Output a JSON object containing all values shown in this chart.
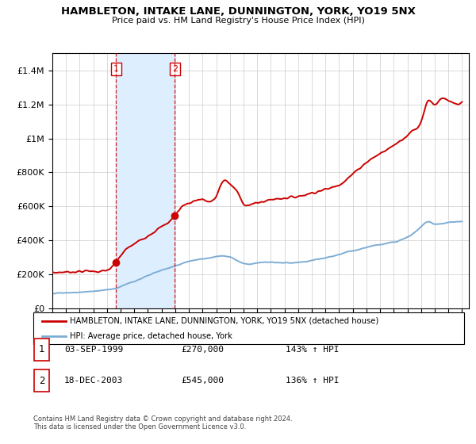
{
  "title": "HAMBLETON, INTAKE LANE, DUNNINGTON, YORK, YO19 5NX",
  "subtitle": "Price paid vs. HM Land Registry's House Price Index (HPI)",
  "legend_line1": "HAMBLETON, INTAKE LANE, DUNNINGTON, YORK, YO19 5NX (detached house)",
  "legend_line2": "HPI: Average price, detached house, York",
  "table": [
    {
      "num": "1",
      "date": "03-SEP-1999",
      "price": "£270,000",
      "hpi": "143% ↑ HPI"
    },
    {
      "num": "2",
      "date": "18-DEC-2003",
      "price": "£545,000",
      "hpi": "136% ↑ HPI"
    }
  ],
  "footer": "Contains HM Land Registry data © Crown copyright and database right 2024.\nThis data is licensed under the Open Government Licence v3.0.",
  "sale1_x": 1999.67,
  "sale1_y": 270000,
  "sale2_x": 2003.96,
  "sale2_y": 545000,
  "shade_xmin": 1999.67,
  "shade_xmax": 2003.96,
  "ylim": [
    0,
    1500000
  ],
  "xlim": [
    1995.0,
    2025.5
  ],
  "red_color": "#cc0000",
  "blue_color": "#7eadd4",
  "shade_color": "#ddeeff",
  "grid_color": "#cccccc",
  "background_color": "#ffffff",
  "red_knots": [
    [
      1995.0,
      210000
    ],
    [
      1996.0,
      215000
    ],
    [
      1997.0,
      218000
    ],
    [
      1998.0,
      220000
    ],
    [
      1999.0,
      225000
    ],
    [
      1999.67,
      270000
    ],
    [
      2000.0,
      310000
    ],
    [
      2001.0,
      380000
    ],
    [
      2002.0,
      430000
    ],
    [
      2003.0,
      480000
    ],
    [
      2003.96,
      545000
    ],
    [
      2004.5,
      600000
    ],
    [
      2005.0,
      620000
    ],
    [
      2006.0,
      640000
    ],
    [
      2007.0,
      660000
    ],
    [
      2007.5,
      750000
    ],
    [
      2008.0,
      730000
    ],
    [
      2008.5,
      690000
    ],
    [
      2009.0,
      620000
    ],
    [
      2009.5,
      610000
    ],
    [
      2010.0,
      620000
    ],
    [
      2011.0,
      640000
    ],
    [
      2012.0,
      650000
    ],
    [
      2013.0,
      660000
    ],
    [
      2014.0,
      680000
    ],
    [
      2015.0,
      700000
    ],
    [
      2016.0,
      730000
    ],
    [
      2017.0,
      790000
    ],
    [
      2018.0,
      860000
    ],
    [
      2019.0,
      910000
    ],
    [
      2020.0,
      960000
    ],
    [
      2021.0,
      1020000
    ],
    [
      2021.5,
      1050000
    ],
    [
      2022.0,
      1100000
    ],
    [
      2022.5,
      1220000
    ],
    [
      2023.0,
      1200000
    ],
    [
      2023.5,
      1230000
    ],
    [
      2024.0,
      1220000
    ],
    [
      2024.5,
      1200000
    ],
    [
      2025.0,
      1210000
    ]
  ],
  "blue_knots": [
    [
      1995.0,
      90000
    ],
    [
      1996.0,
      92000
    ],
    [
      1997.0,
      96000
    ],
    [
      1998.0,
      102000
    ],
    [
      1999.0,
      112000
    ],
    [
      1999.67,
      120000
    ],
    [
      2000.0,
      130000
    ],
    [
      2001.0,
      160000
    ],
    [
      2002.0,
      195000
    ],
    [
      2003.0,
      225000
    ],
    [
      2003.96,
      250000
    ],
    [
      2004.5,
      265000
    ],
    [
      2005.0,
      278000
    ],
    [
      2006.0,
      292000
    ],
    [
      2007.0,
      305000
    ],
    [
      2007.5,
      308000
    ],
    [
      2008.0,
      302000
    ],
    [
      2008.5,
      285000
    ],
    [
      2009.0,
      265000
    ],
    [
      2009.5,
      262000
    ],
    [
      2010.0,
      268000
    ],
    [
      2011.0,
      272000
    ],
    [
      2012.0,
      268000
    ],
    [
      2013.0,
      270000
    ],
    [
      2014.0,
      282000
    ],
    [
      2015.0,
      298000
    ],
    [
      2016.0,
      318000
    ],
    [
      2017.0,
      340000
    ],
    [
      2018.0,
      360000
    ],
    [
      2019.0,
      378000
    ],
    [
      2020.0,
      390000
    ],
    [
      2021.0,
      420000
    ],
    [
      2021.5,
      445000
    ],
    [
      2022.0,
      480000
    ],
    [
      2022.5,
      510000
    ],
    [
      2023.0,
      498000
    ],
    [
      2023.5,
      500000
    ],
    [
      2024.0,
      505000
    ],
    [
      2024.5,
      510000
    ],
    [
      2025.0,
      510000
    ]
  ]
}
